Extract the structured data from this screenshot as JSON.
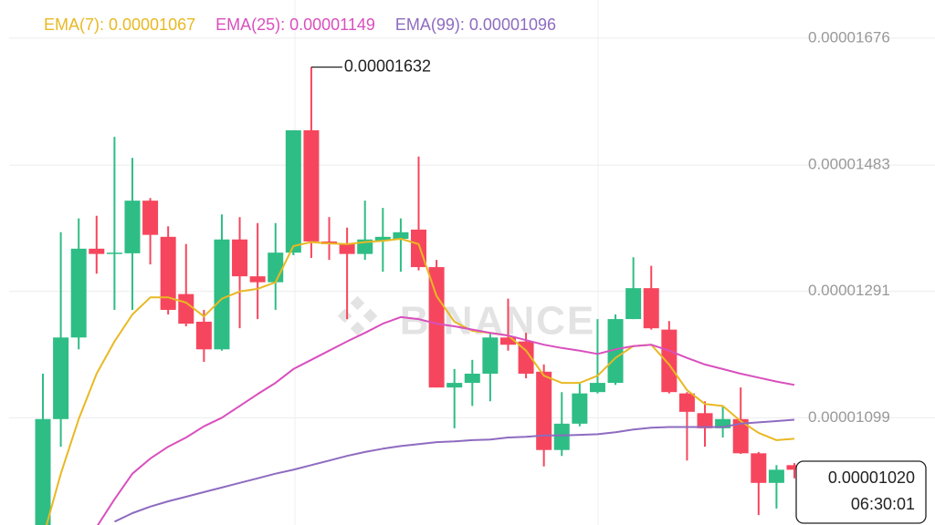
{
  "chart_data": {
    "type": "candlestick",
    "watermark": "BINANCE",
    "ylim": [
      9.36e-06,
      1.734e-05
    ],
    "yticks": [
      1.676e-05,
      1.483e-05,
      1.291e-05,
      1.099e-05
    ],
    "grid": true,
    "up_color": "#2ebd85",
    "down_color": "#f6465d",
    "open": [
      9.36e-06,
      1.097e-05,
      1.221e-05,
      1.356e-05,
      1.348e-05,
      1.349e-05,
      1.429e-05,
      1.374e-05,
      1.287e-05,
      1.245e-05,
      1.203e-05,
      1.37e-05,
      1.314e-05,
      1.305e-05,
      1.35e-05,
      1.536e-05,
      1.367e-05,
      1.363e-05,
      1.348e-05,
      1.368e-05,
      1.371e-05,
      1.385e-05,
      1.328e-05,
      1.145e-05,
      1.152e-05,
      1.166e-05,
      1.221e-05,
      1.215e-05,
      1.169e-05,
      1.05e-05,
      1.09e-05,
      1.138e-05,
      1.152e-05,
      1.249e-05,
      1.296e-05,
      1.233e-05,
      1.136e-05,
      1.106e-05,
      1.083e-05,
      1.097e-05,
      1.045e-05,
      1e-05,
      1.027e-05
    ],
    "high": [
      1.166e-05,
      1.381e-05,
      1.402e-05,
      1.406e-05,
      1.526e-05,
      1.494e-05,
      1.433e-05,
      1.39e-05,
      1.363e-05,
      1.263e-05,
      1.408e-05,
      1.404e-05,
      1.395e-05,
      1.395e-05,
      1.536e-05,
      1.632e-05,
      1.404e-05,
      1.388e-05,
      1.429e-05,
      1.418e-05,
      1.402e-05,
      1.496e-05,
      1.339e-05,
      1.173e-05,
      1.187e-05,
      1.228e-05,
      1.28e-05,
      1.228e-05,
      1.18e-05,
      1.138e-05,
      1.152e-05,
      1.249e-05,
      1.256e-05,
      1.343e-05,
      1.33e-05,
      1.246e-05,
      1.138e-05,
      1.124e-05,
      1.117e-05,
      1.145e-05,
      1.047e-05,
      1.027e-05,
      1.03e-05
    ],
    "low": [
      9.36e-06,
      1.055e-05,
      1.203e-05,
      1.318e-05,
      1.263e-05,
      1.263e-05,
      1.332e-05,
      1.256e-05,
      1.238e-05,
      1.184e-05,
      1.201e-05,
      1.235e-05,
      1.249e-05,
      1.263e-05,
      1.346e-05,
      1.342e-05,
      1.339e-05,
      1.249e-05,
      1.339e-05,
      1.321e-05,
      1.321e-05,
      1.323e-05,
      1.145e-05,
      1.083e-05,
      1.117e-05,
      1.124e-05,
      1.201e-05,
      1.159e-05,
      1.025e-05,
      1.041e-05,
      1.086e-05,
      1.136e-05,
      1.149e-05,
      1.249e-05,
      1.233e-05,
      1.136e-05,
      1.034e-05,
      1.055e-05,
      1.069e-05,
      1.044e-05,
      9.51e-06,
      9.61e-06,
      1.007e-05
    ],
    "close": [
      1.097e-05,
      1.221e-05,
      1.356e-05,
      1.348e-05,
      1.35e-05,
      1.429e-05,
      1.377e-05,
      1.263e-05,
      1.242e-05,
      1.203e-05,
      1.37e-05,
      1.314e-05,
      1.305e-05,
      1.35e-05,
      1.536e-05,
      1.367e-05,
      1.363e-05,
      1.348e-05,
      1.37e-05,
      1.374e-05,
      1.381e-05,
      1.328e-05,
      1.145e-05,
      1.152e-05,
      1.166e-05,
      1.221e-05,
      1.21e-05,
      1.166e-05,
      1.05e-05,
      1.09e-05,
      1.136e-05,
      1.152e-05,
      1.249e-05,
      1.296e-05,
      1.235e-05,
      1.138e-05,
      1.108e-05,
      1.083e-05,
      1.097e-05,
      1.045e-05,
      1e-05,
      1.02e-05,
      1.02e-05
    ],
    "series": [
      {
        "name": "EMA(7): 0.00001067",
        "color": "#e8b923",
        "values": [
          9.16e-06,
          1.014e-05,
          1.097e-05,
          1.166e-05,
          1.215e-05,
          1.256e-05,
          1.282e-05,
          1.282e-05,
          1.274e-05,
          1.253e-05,
          1.28e-05,
          1.291e-05,
          1.295e-05,
          1.305e-05,
          1.36e-05,
          1.366e-05,
          1.364e-05,
          1.363e-05,
          1.366e-05,
          1.368e-05,
          1.371e-05,
          1.363e-05,
          1.284e-05,
          1.245e-05,
          1.231e-05,
          1.228e-05,
          1.224e-05,
          1.201e-05,
          1.163e-05,
          1.152e-05,
          1.152e-05,
          1.163e-05,
          1.19e-05,
          1.208e-05,
          1.21e-05,
          1.18e-05,
          1.141e-05,
          1.12e-05,
          1.117e-05,
          1.094e-05,
          1.076e-05,
          1.065e-05,
          1.067e-05
        ]
      },
      {
        "name": "EMA(25): 0.00001149",
        "color": "#d94fbd",
        "values": [
          null,
          null,
          null,
          9.33e-06,
          9.75e-06,
          1.014e-05,
          1.037e-05,
          1.055e-05,
          1.069e-05,
          1.086e-05,
          1.099e-05,
          1.117e-05,
          1.135e-05,
          1.152e-05,
          1.173e-05,
          1.187e-05,
          1.201e-05,
          1.215e-05,
          1.228e-05,
          1.242e-05,
          1.252e-05,
          1.249e-05,
          1.242e-05,
          1.238e-05,
          1.233e-05,
          1.228e-05,
          1.224e-05,
          1.217e-05,
          1.21e-05,
          1.205e-05,
          1.201e-05,
          1.196e-05,
          1.203e-05,
          1.208e-05,
          1.21e-05,
          1.201e-05,
          1.19e-05,
          1.18e-05,
          1.173e-05,
          1.166e-05,
          1.16e-05,
          1.154e-05,
          1.149e-05
        ]
      },
      {
        "name": "EMA(99): 0.00001096",
        "color": "#8e6bc0",
        "values": [
          null,
          null,
          null,
          null,
          9.41e-06,
          9.54e-06,
          9.64e-06,
          9.72e-06,
          9.79e-06,
          9.86e-06,
          9.93e-06,
          1e-05,
          1.007e-05,
          1.014e-05,
          1.02e-05,
          1.027e-05,
          1.034e-05,
          1.041e-05,
          1.047e-05,
          1.052e-05,
          1.056e-05,
          1.059e-05,
          1.062e-05,
          1.063e-05,
          1.065e-05,
          1.066e-05,
          1.069e-05,
          1.07e-05,
          1.072e-05,
          1.072e-05,
          1.073e-05,
          1.074e-05,
          1.077e-05,
          1.081e-05,
          1.084e-05,
          1.085e-05,
          1.085e-05,
          1.085e-05,
          1.085e-05,
          1.09e-05,
          1.092e-05,
          1.094e-05,
          1.096e-05
        ]
      }
    ],
    "last_price": {
      "value": 1.02e-05,
      "label": "0.00001020"
    },
    "countdown": "06:30:01"
  }
}
